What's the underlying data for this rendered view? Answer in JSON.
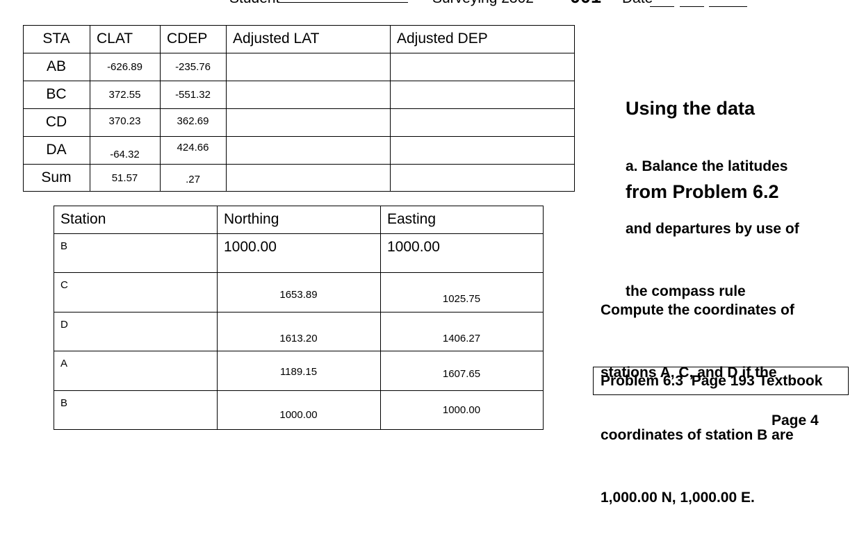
{
  "header": {
    "student": "Student",
    "course": "Surveying 2302-",
    "section": "001",
    "date": "Date"
  },
  "table1": {
    "headers": [
      "STA",
      "CLAT",
      "CDEP",
      "Adjusted LAT",
      "Adjusted DEP"
    ],
    "rows": [
      [
        "AB",
        "-626.89",
        "-235.76"
      ],
      [
        "BC",
        "372.55",
        "-551.32"
      ],
      [
        "CD",
        "370.23",
        "362.69"
      ],
      [
        "DA",
        "-64.32",
        "424.66"
      ],
      [
        "Sum",
        "51.57",
        ".27"
      ]
    ]
  },
  "table2": {
    "headers": [
      "Station",
      "Northing",
      "Easting"
    ],
    "rows": [
      [
        "B",
        "1000.00",
        "1000.00"
      ],
      [
        "C",
        "1653.89",
        "1025.75"
      ],
      [
        "D",
        "1613.20",
        "1406.27"
      ],
      [
        "A",
        "1189.15",
        "1607.65"
      ],
      [
        "B",
        "1000.00",
        "1000.00"
      ]
    ]
  },
  "title_lines": [
    "Using the data",
    "from Problem 6.2"
  ],
  "part_a_lines": [
    "a. Balance the latitudes",
    "and departures by use of",
    "the compass rule"
  ],
  "compute_lines": [
    "Compute the coordinates of",
    "stations A, C, and D if the",
    "coordinates of station B are",
    "1,000.00 N, 1,000.00 E."
  ],
  "problem_box": "Problem 6.3  Page 193 Textbook",
  "page": "Page 4"
}
